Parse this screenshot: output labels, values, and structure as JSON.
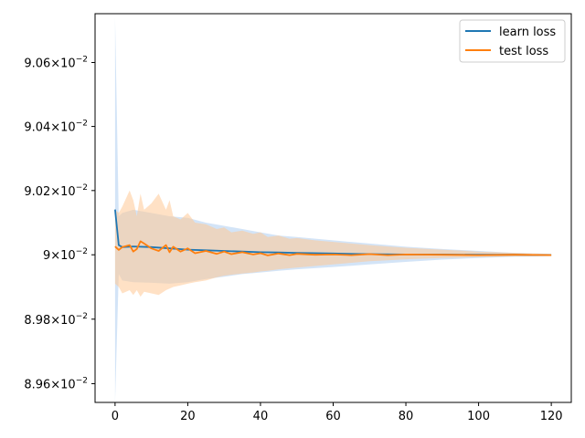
{
  "chart_data": {
    "type": "line",
    "title": "",
    "xlabel": "",
    "ylabel": "",
    "xlim": [
      -5.5,
      125.5
    ],
    "ylim": [
      0.089542,
      0.090753
    ],
    "yscale": "log",
    "grid": false,
    "legend_placement": "top-right",
    "x_ticks": [
      0,
      20,
      40,
      60,
      80,
      100,
      120
    ],
    "x_tick_labels": [
      "0",
      "20",
      "40",
      "60",
      "80",
      "100",
      "120"
    ],
    "y_ticks": [
      0.0896,
      0.0898,
      0.09,
      0.0902,
      0.0904,
      0.0906
    ],
    "y_tick_labels": [
      {
        "mantissa": "8.96",
        "times": "×",
        "base": "10",
        "exp": "−2"
      },
      {
        "mantissa": "8.98",
        "times": "×",
        "base": "10",
        "exp": "−2"
      },
      {
        "mantissa": "9",
        "times": "×",
        "base": "10",
        "exp": "−2"
      },
      {
        "mantissa": "9.02",
        "times": "×",
        "base": "10",
        "exp": "−2"
      },
      {
        "mantissa": "9.04",
        "times": "×",
        "base": "10",
        "exp": "−2"
      },
      {
        "mantissa": "9.06",
        "times": "×",
        "base": "10",
        "exp": "−2"
      }
    ],
    "series": [
      {
        "name": "learn loss",
        "color": "#1f77b4",
        "band_color": "#aecdf0",
        "x": [
          0,
          1,
          2,
          5,
          10,
          15,
          20,
          25,
          30,
          35,
          40,
          45,
          50,
          60,
          70,
          80,
          90,
          100,
          110,
          120
        ],
        "y": [
          0.090141,
          0.09003,
          0.090024,
          0.090026,
          0.090024,
          0.09002,
          0.090016,
          0.090014,
          0.090012,
          0.09001,
          0.090008,
          0.090007,
          0.090006,
          0.090004,
          0.090002,
          0.090001,
          0.090001,
          0.09,
          0.09,
          0.089999
        ],
        "lower": [
          0.089542,
          0.08994,
          0.08992,
          0.089915,
          0.089913,
          0.08991,
          0.089915,
          0.089925,
          0.089932,
          0.08994,
          0.089945,
          0.08995,
          0.089955,
          0.089962,
          0.08997,
          0.089978,
          0.089985,
          0.08999,
          0.089994,
          0.089996
        ],
        "upper": [
          0.09074,
          0.09012,
          0.09013,
          0.09014,
          0.09013,
          0.09012,
          0.090115,
          0.0901,
          0.09009,
          0.09008,
          0.09007,
          0.09006,
          0.090055,
          0.090045,
          0.090035,
          0.090025,
          0.090018,
          0.090012,
          0.090006,
          0.090003
        ]
      },
      {
        "name": "test loss",
        "color": "#ff7f0e",
        "band_color": "#ffc996",
        "x": [
          0,
          1,
          2,
          4,
          5,
          6,
          7,
          8,
          10,
          12,
          14,
          15,
          16,
          18,
          20,
          22,
          25,
          28,
          30,
          32,
          35,
          38,
          40,
          42,
          45,
          48,
          50,
          55,
          60,
          65,
          70,
          75,
          80,
          90,
          100,
          110,
          120
        ],
        "y": [
          0.090026,
          0.090015,
          0.090024,
          0.09003,
          0.09001,
          0.090018,
          0.090042,
          0.090035,
          0.09002,
          0.090012,
          0.09003,
          0.090008,
          0.090025,
          0.09001,
          0.09002,
          0.090005,
          0.090012,
          0.090003,
          0.09001,
          0.090002,
          0.090008,
          0.090001,
          0.090005,
          0.089998,
          0.090004,
          0.089999,
          0.090003,
          0.09,
          0.090001,
          0.089999,
          0.090002,
          0.089999,
          0.090001,
          0.09,
          0.089999,
          0.09,
          0.089999
        ],
        "lower": [
          0.08991,
          0.0899,
          0.08988,
          0.08989,
          0.089875,
          0.08989,
          0.08987,
          0.089885,
          0.08988,
          0.089875,
          0.08989,
          0.089895,
          0.0899,
          0.089905,
          0.08991,
          0.089915,
          0.08992,
          0.08993,
          0.089935,
          0.089938,
          0.089942,
          0.089945,
          0.089948,
          0.08995,
          0.089955,
          0.089958,
          0.08996,
          0.089965,
          0.08997,
          0.089975,
          0.08998,
          0.089983,
          0.089986,
          0.08999,
          0.089993,
          0.089995,
          0.089997
        ],
        "upper": [
          0.09014,
          0.09013,
          0.09015,
          0.0902,
          0.09017,
          0.09012,
          0.09019,
          0.09014,
          0.09016,
          0.09019,
          0.09014,
          0.09017,
          0.09012,
          0.09011,
          0.09013,
          0.0901,
          0.090095,
          0.09008,
          0.090085,
          0.09007,
          0.090075,
          0.090065,
          0.09007,
          0.090055,
          0.09006,
          0.09005,
          0.090052,
          0.090045,
          0.09004,
          0.090035,
          0.09003,
          0.090026,
          0.090022,
          0.090016,
          0.09001,
          0.090006,
          0.090003
        ]
      }
    ]
  }
}
